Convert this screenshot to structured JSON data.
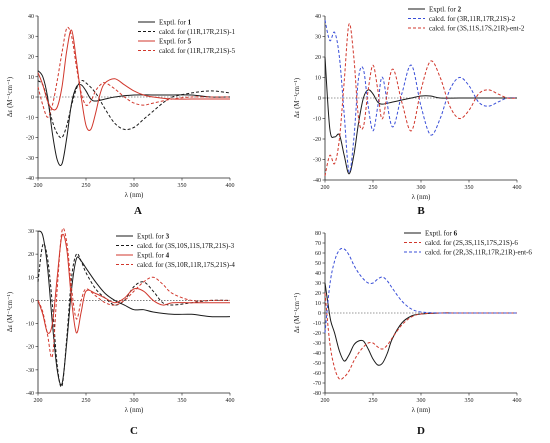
{
  "colors": {
    "black": "#1a1a1a",
    "red": "#d1372c",
    "blue": "#3a4fd8",
    "zero": "#333333"
  },
  "chart_data": [
    {
      "type": "line",
      "letter": "A",
      "xlabel": "λ (nm)",
      "ylabel": "Δε  (M⁻¹cm⁻¹)",
      "xlim": [
        200,
        400
      ],
      "ylim": [
        -40,
        40
      ],
      "xticks": [
        200,
        250,
        300,
        350,
        400
      ],
      "yticks": [
        -40,
        -30,
        -20,
        -10,
        0,
        10,
        20,
        30,
        40
      ],
      "legend": [
        {
          "pre": "Exptl. for ",
          "bold": "1",
          "post": "",
          "color": "black",
          "dash": false
        },
        {
          "pre": "calcd. for (11",
          "bold": "",
          "post": "R,17R,21S)-1",
          "color": "black",
          "dash": true
        },
        {
          "pre": "Exptl. for ",
          "bold": "5",
          "post": "",
          "color": "red",
          "dash": false
        },
        {
          "pre": "calcd. for (11",
          "bold": "",
          "post": "R,17R,21S)-5",
          "color": "red",
          "dash": true
        }
      ],
      "series": [
        {
          "color": "black",
          "dash": false,
          "x": [
            200,
            205,
            210,
            215,
            220,
            225,
            230,
            235,
            240,
            245,
            250,
            255,
            260,
            270,
            280,
            300,
            320,
            340,
            360,
            380,
            400
          ],
          "values": [
            13,
            10,
            0,
            -18,
            -31,
            -33,
            -20,
            -3,
            5,
            6,
            3,
            -1,
            -2,
            -1,
            0,
            1,
            1,
            1,
            1,
            0,
            0
          ]
        },
        {
          "color": "black",
          "dash": true,
          "x": [
            200,
            205,
            210,
            215,
            220,
            225,
            230,
            235,
            240,
            245,
            250,
            260,
            270,
            280,
            290,
            300,
            310,
            320,
            330,
            340,
            360,
            380,
            400
          ],
          "values": [
            8,
            6,
            -2,
            -12,
            -18,
            -20,
            -14,
            -4,
            4,
            8,
            7,
            2,
            -6,
            -13,
            -16,
            -15,
            -11,
            -7,
            -3,
            0,
            2,
            3,
            2
          ]
        },
        {
          "color": "red",
          "dash": false,
          "x": [
            200,
            205,
            210,
            215,
            220,
            225,
            230,
            235,
            240,
            245,
            250,
            255,
            260,
            265,
            270,
            280,
            290,
            300,
            310,
            320,
            340,
            360,
            380,
            400
          ],
          "values": [
            12,
            6,
            -2,
            -6,
            -5,
            5,
            23,
            33,
            18,
            0,
            -14,
            -16,
            -8,
            2,
            7,
            9,
            6,
            3,
            1,
            0,
            -1,
            -1,
            -1,
            -1
          ]
        },
        {
          "color": "red",
          "dash": true,
          "x": [
            200,
            205,
            210,
            215,
            220,
            225,
            230,
            235,
            240,
            245,
            250,
            255,
            260,
            265,
            270,
            280,
            290,
            300,
            310,
            320,
            340,
            360,
            380,
            400
          ],
          "values": [
            5,
            -4,
            -10,
            -4,
            8,
            22,
            34,
            30,
            15,
            2,
            -4,
            -2,
            3,
            6,
            7,
            4,
            0,
            -3,
            -4,
            -3,
            -1,
            0,
            0,
            0
          ]
        }
      ]
    },
    {
      "type": "line",
      "letter": "B",
      "xlabel": "λ (nm)",
      "ylabel": "Δε  (M⁻¹cm⁻¹)",
      "xlim": [
        200,
        400
      ],
      "ylim": [
        -40,
        40
      ],
      "xticks": [
        200,
        250,
        300,
        350,
        400
      ],
      "yticks": [
        -40,
        -30,
        -20,
        -10,
        0,
        10,
        20,
        30,
        40
      ],
      "legend": [
        {
          "pre": "Exptl. for ",
          "bold": "2",
          "post": "",
          "color": "black",
          "dash": false
        },
        {
          "pre": "calcd. for (3",
          "bold": "",
          "post": "R,11R,17R,21S)-2",
          "color": "blue",
          "dash": true
        },
        {
          "pre": "calcd. for (3",
          "bold": "",
          "post": "S,11S,17S,21R)-ent-2",
          "color": "red",
          "dash": true
        }
      ],
      "series": [
        {
          "color": "black",
          "dash": false,
          "x": [
            200,
            205,
            210,
            215,
            220,
            225,
            230,
            235,
            240,
            245,
            250,
            255,
            260,
            270,
            280,
            290,
            300,
            310,
            320,
            340,
            360,
            380,
            400
          ],
          "values": [
            20,
            -15,
            -19,
            -18,
            -28,
            -37,
            -28,
            -12,
            0,
            4,
            2,
            -2,
            -3,
            -2,
            -1,
            0,
            1,
            1,
            0,
            0,
            0,
            0,
            0
          ]
        },
        {
          "color": "blue",
          "dash": true,
          "x": [
            200,
            205,
            210,
            215,
            220,
            225,
            230,
            235,
            240,
            245,
            250,
            255,
            260,
            270,
            280,
            290,
            300,
            310,
            320,
            330,
            340,
            350,
            360,
            370,
            380,
            390,
            400
          ],
          "values": [
            38,
            28,
            32,
            20,
            -8,
            -36,
            -20,
            10,
            14,
            -4,
            -16,
            -4,
            10,
            -14,
            2,
            16,
            -4,
            -18,
            -10,
            4,
            10,
            6,
            -2,
            -4,
            -2,
            0,
            0
          ]
        },
        {
          "color": "red",
          "dash": true,
          "x": [
            200,
            205,
            210,
            215,
            220,
            225,
            230,
            235,
            240,
            245,
            250,
            255,
            260,
            270,
            280,
            290,
            300,
            310,
            320,
            330,
            340,
            350,
            360,
            370,
            380,
            390,
            400
          ],
          "values": [
            -38,
            -28,
            -32,
            -20,
            8,
            36,
            20,
            -10,
            -14,
            4,
            16,
            4,
            -10,
            14,
            -2,
            -16,
            4,
            18,
            10,
            -4,
            -10,
            -6,
            2,
            4,
            2,
            0,
            0
          ]
        }
      ]
    },
    {
      "type": "line",
      "letter": "C",
      "xlabel": "λ (nm)",
      "ylabel": "Δε  (M⁻¹cm⁻¹)",
      "xlim": [
        200,
        400
      ],
      "ylim": [
        -40,
        30
      ],
      "xticks": [
        200,
        250,
        300,
        350,
        400
      ],
      "yticks": [
        -40,
        -30,
        -20,
        -10,
        0,
        10,
        20,
        30
      ],
      "legend": [
        {
          "pre": "Exptl. for ",
          "bold": "3",
          "post": "",
          "color": "black",
          "dash": false
        },
        {
          "pre": "calcd. for (3",
          "bold": "",
          "post": "S,10S,11S,17R,21S)-3",
          "color": "black",
          "dash": true
        },
        {
          "pre": "Exptl. for ",
          "bold": "4",
          "post": "",
          "color": "red",
          "dash": false
        },
        {
          "pre": "calcd. for (3",
          "bold": "",
          "post": "S,10R,11R,17S,21S)-4",
          "color": "red",
          "dash": true
        }
      ],
      "series": [
        {
          "color": "black",
          "dash": false,
          "x": [
            200,
            205,
            210,
            215,
            220,
            225,
            230,
            235,
            240,
            245,
            250,
            260,
            270,
            280,
            290,
            300,
            310,
            320,
            340,
            360,
            380,
            400
          ],
          "values": [
            30,
            28,
            14,
            -10,
            -30,
            -36,
            -18,
            5,
            18,
            17,
            14,
            8,
            3,
            0,
            -2,
            -4,
            -4,
            -5,
            -6,
            -6,
            -7,
            -7
          ]
        },
        {
          "color": "black",
          "dash": true,
          "x": [
            200,
            205,
            210,
            215,
            220,
            225,
            230,
            235,
            240,
            245,
            250,
            260,
            270,
            280,
            290,
            300,
            310,
            320,
            330,
            340,
            360,
            380,
            400
          ],
          "values": [
            8,
            24,
            18,
            -2,
            -28,
            -37,
            -16,
            10,
            20,
            17,
            12,
            5,
            1,
            -2,
            0,
            6,
            8,
            4,
            -1,
            -2,
            -1,
            0,
            0
          ]
        },
        {
          "color": "red",
          "dash": false,
          "x": [
            200,
            205,
            210,
            215,
            220,
            225,
            230,
            235,
            240,
            245,
            250,
            260,
            270,
            280,
            290,
            300,
            310,
            320,
            330,
            340,
            360,
            380,
            400
          ],
          "values": [
            0,
            -6,
            -14,
            -10,
            10,
            28,
            22,
            0,
            -14,
            -5,
            4,
            3,
            1,
            -1,
            1,
            5,
            4,
            0,
            -2,
            -1,
            -1,
            -1,
            -1
          ]
        },
        {
          "color": "red",
          "dash": true,
          "x": [
            200,
            205,
            210,
            215,
            220,
            225,
            230,
            235,
            240,
            245,
            250,
            260,
            270,
            280,
            290,
            300,
            310,
            320,
            330,
            340,
            360,
            380,
            400
          ],
          "values": [
            0,
            -5,
            -15,
            -24,
            5,
            30,
            25,
            5,
            -8,
            0,
            5,
            2,
            -1,
            -2,
            0,
            4,
            8,
            10,
            7,
            3,
            0,
            0,
            0
          ]
        }
      ]
    },
    {
      "type": "line",
      "letter": "D",
      "xlabel": "λ (nm)",
      "ylabel": "Δε  (M⁻¹cm⁻¹)",
      "xlim": [
        200,
        400
      ],
      "ylim": [
        -80,
        80
      ],
      "xticks": [
        200,
        250,
        300,
        350,
        400
      ],
      "yticks": [
        -80,
        -70,
        -60,
        -50,
        -40,
        -30,
        -20,
        -10,
        0,
        10,
        20,
        30,
        40,
        50,
        60,
        70,
        80
      ],
      "legend": [
        {
          "pre": "Exptl. for ",
          "bold": "6",
          "post": "",
          "color": "black",
          "dash": false
        },
        {
          "pre": "calcd. for (2",
          "bold": "",
          "post": "S,3S,11S,17S,21S)-6",
          "color": "red",
          "dash": true
        },
        {
          "pre": "calcd. for (2",
          "bold": "",
          "post": "R,3S,11R,17R,21R)-ent-6",
          "color": "blue",
          "dash": true
        }
      ],
      "series": [
        {
          "color": "black",
          "dash": false,
          "x": [
            200,
            203,
            206,
            210,
            215,
            220,
            225,
            230,
            235,
            240,
            245,
            250,
            255,
            260,
            265,
            270,
            280,
            290,
            300,
            320,
            340,
            360,
            380,
            400
          ],
          "values": [
            30,
            10,
            -8,
            -20,
            -38,
            -48,
            -42,
            -32,
            -28,
            -28,
            -36,
            -46,
            -52,
            -50,
            -40,
            -26,
            -10,
            -3,
            -1,
            0,
            0,
            0,
            0,
            0
          ]
        },
        {
          "color": "red",
          "dash": true,
          "x": [
            200,
            205,
            210,
            215,
            220,
            225,
            230,
            235,
            240,
            245,
            250,
            255,
            260,
            265,
            270,
            280,
            290,
            300,
            320,
            340,
            360,
            380,
            400
          ],
          "values": [
            20,
            -30,
            -55,
            -66,
            -64,
            -58,
            -48,
            -40,
            -34,
            -30,
            -30,
            -34,
            -36,
            -32,
            -25,
            -12,
            -4,
            -1,
            0,
            0,
            0,
            0,
            0
          ]
        },
        {
          "color": "blue",
          "dash": true,
          "x": [
            200,
            205,
            210,
            215,
            220,
            225,
            230,
            235,
            240,
            245,
            250,
            255,
            260,
            265,
            270,
            280,
            290,
            300,
            320,
            340,
            360,
            380,
            400
          ],
          "values": [
            -20,
            28,
            52,
            63,
            64,
            58,
            48,
            40,
            34,
            30,
            30,
            34,
            36,
            32,
            25,
            12,
            4,
            1,
            0,
            0,
            0,
            0,
            0
          ]
        }
      ]
    }
  ]
}
